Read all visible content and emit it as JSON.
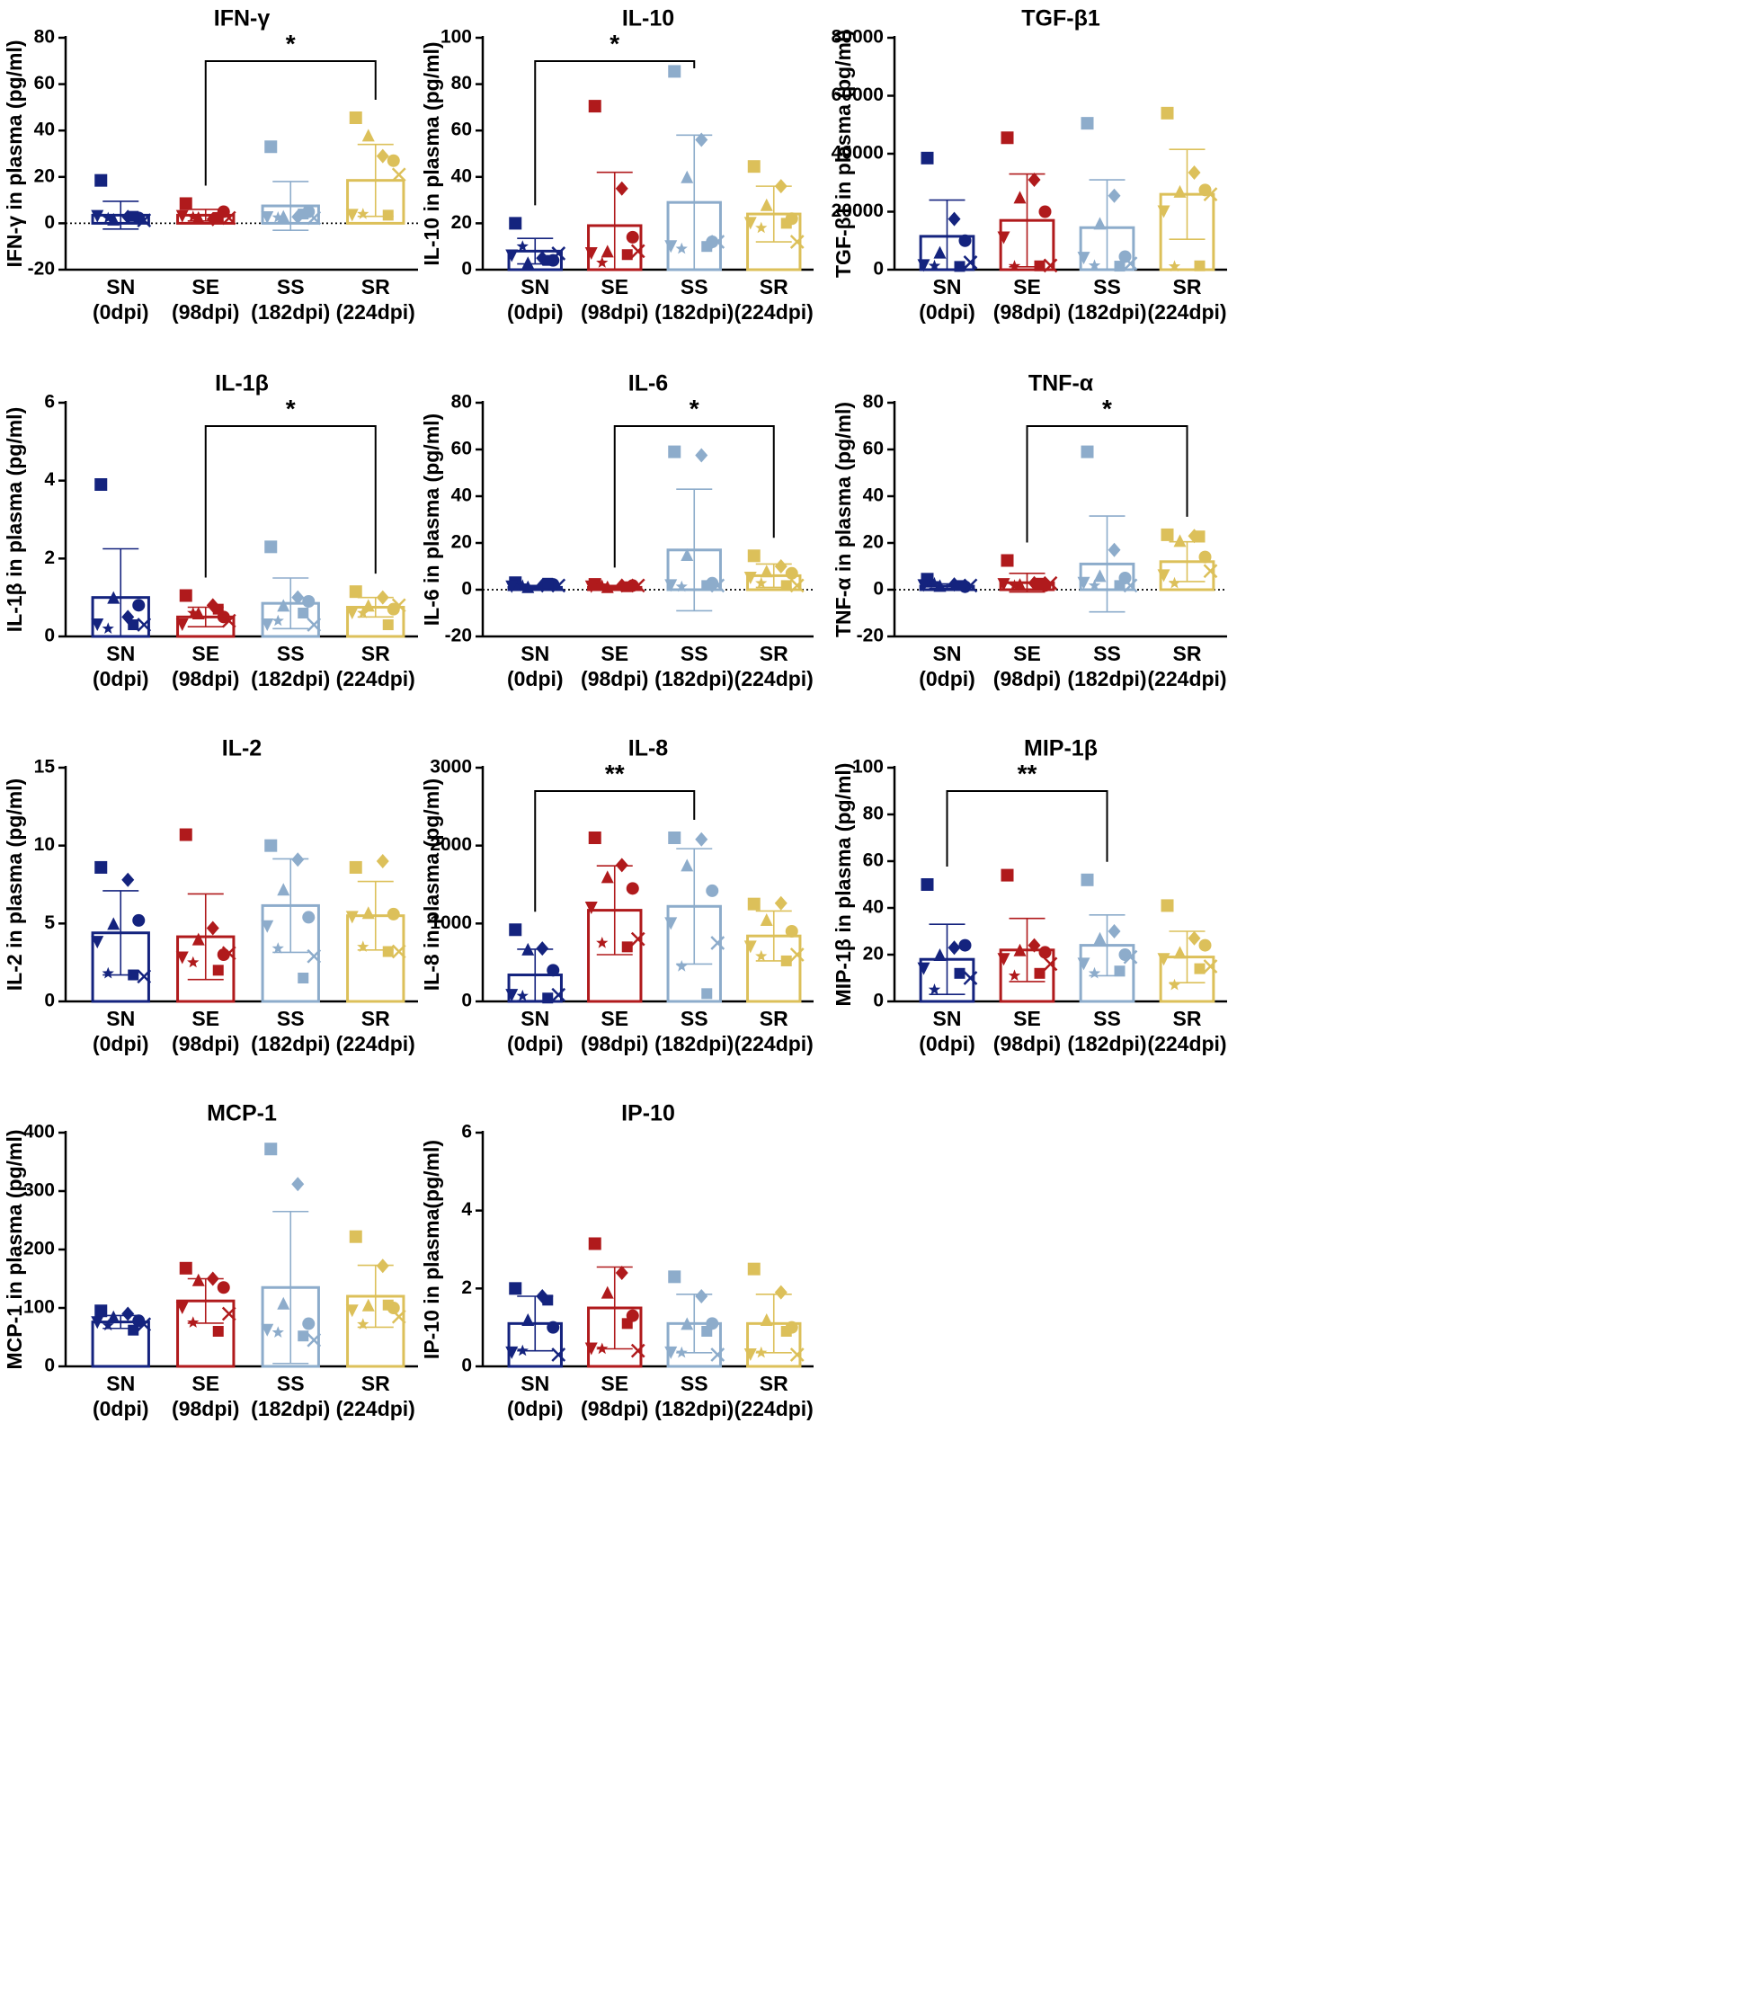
{
  "figure": {
    "categories": [
      "SN",
      "SE",
      "SS",
      "SR"
    ],
    "timepoints": [
      "(0dpi)",
      "(98dpi)",
      "(182dpi)",
      "(224dpi)"
    ]
  },
  "colors": {
    "SN": "#14237e",
    "SE": "#b01a1c",
    "SS": "#8daccb",
    "SR": "#dcc05a",
    "axis": "#000000"
  },
  "chart_data": [
    {
      "type": "bar",
      "title": "IFN-γ",
      "ylabel": "IFN-γ in plasma (pg/ml)",
      "ylim": [
        -20,
        80
      ],
      "yticks": [
        -20,
        0,
        20,
        40,
        60,
        80
      ],
      "categories": [
        "SN (0dpi)",
        "SE (98dpi)",
        "SS (182dpi)",
        "SR (224dpi)"
      ],
      "values": [
        3.5,
        3.5,
        7.5,
        18.5
      ],
      "sd": [
        6,
        2.5,
        10.5,
        15.5
      ],
      "points": [
        [
          18.5,
          2,
          1,
          1.5,
          3,
          0.5,
          1.5,
          3
        ],
        [
          8.5,
          1,
          2.5,
          5,
          3,
          1.5,
          2,
          2.5
        ],
        [
          33,
          2,
          3,
          5,
          2.5,
          1.5,
          2.5,
          4
        ],
        [
          45.5,
          29,
          38,
          27,
          3.5,
          21,
          4,
          3.5
        ]
      ],
      "significance": [
        {
          "from": 1,
          "to": 3,
          "label": "*"
        }
      ]
    },
    {
      "type": "bar",
      "title": "IL-10",
      "ylabel": "IL-10 in plasma (pg/ml)",
      "ylim": [
        0,
        100
      ],
      "yticks": [
        0,
        20,
        40,
        60,
        80,
        100
      ],
      "categories": [
        "SN (0dpi)",
        "SE (98dpi)",
        "SS (182dpi)",
        "SR (224dpi)"
      ],
      "values": [
        8,
        19,
        29,
        24
      ],
      "sd": [
        5.5,
        23,
        29,
        12
      ],
      "points": [
        [
          20,
          5,
          3,
          4,
          6,
          7,
          10,
          4
        ],
        [
          70.5,
          35,
          8,
          14,
          7,
          8,
          3,
          6.5
        ],
        [
          85.5,
          56,
          40,
          12,
          10,
          12,
          9,
          10
        ],
        [
          44.5,
          36,
          28,
          22,
          20,
          12,
          18,
          20
        ]
      ],
      "significance": [
        {
          "from": 0,
          "to": 2,
          "label": "*"
        }
      ]
    },
    {
      "type": "bar",
      "title": "TGF-β1",
      "ylabel": "TGF-β1 in plasma (pg/ml)",
      "ylim": [
        0,
        80000
      ],
      "yticks": [
        0,
        20000,
        40000,
        60000,
        80000
      ],
      "categories": [
        "SN (0dpi)",
        "SE (98dpi)",
        "SS (182dpi)",
        "SR (224dpi)"
      ],
      "values": [
        11500,
        17000,
        14500,
        26000
      ],
      "sd": [
        12500,
        16000,
        16500,
        15500
      ],
      "points": [
        [
          38500,
          17500,
          6000,
          10000,
          800,
          2500,
          700,
          500
        ],
        [
          45500,
          31000,
          25000,
          20000,
          11000,
          800,
          600,
          700
        ],
        [
          50500,
          25500,
          16000,
          4500,
          4000,
          1500,
          800,
          600
        ],
        [
          54000,
          33500,
          27000,
          27500,
          20000,
          26000,
          500,
          700
        ]
      ],
      "significance": []
    },
    {
      "type": "bar",
      "title": "IL-1β",
      "ylabel": "IL-1β in plasma (pg/ml)",
      "ylim": [
        0,
        6
      ],
      "yticks": [
        0,
        2,
        4,
        6
      ],
      "categories": [
        "SN (0dpi)",
        "SE (98dpi)",
        "SS (182dpi)",
        "SR (224dpi)"
      ],
      "values": [
        1.0,
        0.5,
        0.85,
        0.75
      ],
      "sd": [
        1.25,
        0.25,
        0.65,
        0.25
      ],
      "points": [
        [
          3.9,
          0.5,
          1.0,
          0.8,
          0.3,
          0.3,
          0.2,
          0.3
        ],
        [
          1.05,
          0.8,
          0.6,
          0.5,
          0.3,
          0.4,
          0.6,
          0.7
        ],
        [
          2.3,
          1.0,
          0.8,
          0.9,
          0.3,
          0.3,
          0.4,
          0.6
        ],
        [
          1.15,
          1.0,
          0.8,
          0.7,
          0.6,
          0.8,
          0.6,
          0.3
        ]
      ],
      "significance": [
        {
          "from": 1,
          "to": 3,
          "label": "*"
        }
      ]
    },
    {
      "type": "bar",
      "title": "IL-6",
      "ylabel": "IL-6 in plasma (pg/ml)",
      "ylim": [
        -20,
        80
      ],
      "yticks": [
        -20,
        0,
        20,
        40,
        60,
        80
      ],
      "categories": [
        "SN (0dpi)",
        "SE (98dpi)",
        "SS (182dpi)",
        "SR (224dpi)"
      ],
      "values": [
        1,
        1,
        17,
        6
      ],
      "sd": [
        0.8,
        0.8,
        26,
        5
      ],
      "points": [
        [
          3,
          1,
          0.5,
          1.5,
          0.5,
          1,
          1,
          2
        ],
        [
          1.5,
          1,
          0.5,
          1,
          0.5,
          1,
          1,
          0.5
        ],
        [
          59,
          57.5,
          15,
          2,
          1,
          1,
          0.5,
          1
        ],
        [
          14.5,
          10,
          8,
          7,
          5,
          1,
          2,
          1
        ]
      ],
      "significance": [
        {
          "from": 1,
          "to": 3,
          "label": "*"
        }
      ]
    },
    {
      "type": "bar",
      "title": "TNF-α",
      "ylabel": "TNF-α in plasma (pg/ml)",
      "ylim": [
        -20,
        80
      ],
      "yticks": [
        -20,
        0,
        20,
        40,
        60,
        80
      ],
      "categories": [
        "SN (0dpi)",
        "SE (98dpi)",
        "SS (182dpi)",
        "SR (224dpi)"
      ],
      "values": [
        1.5,
        3,
        11,
        12
      ],
      "sd": [
        1,
        4,
        20.5,
        8.5
      ],
      "points": [
        [
          4.5,
          1.5,
          1,
          0.5,
          1,
          1,
          2,
          1
        ],
        [
          12.5,
          2,
          1.5,
          1,
          1.5,
          2,
          1,
          2
        ],
        [
          59,
          17,
          6,
          5,
          2,
          1,
          1,
          1
        ],
        [
          23.5,
          23,
          21,
          14,
          6,
          8,
          2,
          23
        ]
      ],
      "significance": [
        {
          "from": 1,
          "to": 3,
          "label": "*"
        }
      ]
    },
    {
      "type": "bar",
      "title": "IL-2",
      "ylabel": "IL-2 in plasma (pg/ml)",
      "ylim": [
        0,
        15
      ],
      "yticks": [
        0,
        5,
        10,
        15
      ],
      "categories": [
        "SN (0dpi)",
        "SE (98dpi)",
        "SS (182dpi)",
        "SR (224dpi)"
      ],
      "values": [
        4.4,
        4.15,
        6.15,
        5.5
      ],
      "sd": [
        2.7,
        2.75,
        3.0,
        2.2
      ],
      "points": [
        [
          8.6,
          7.8,
          5.0,
          5.2,
          3.8,
          1.6,
          1.8,
          1.7
        ],
        [
          10.7,
          4.7,
          4.0,
          3.0,
          2.8,
          3.1,
          2.5,
          2.0
        ],
        [
          10.0,
          9.1,
          7.2,
          5.4,
          4.8,
          2.9,
          3.4,
          1.5
        ],
        [
          8.6,
          9.0,
          5.7,
          5.6,
          5.4,
          3.2,
          3.5,
          3.2
        ]
      ],
      "significance": []
    },
    {
      "type": "bar",
      "title": "IL-8",
      "ylabel": "IL-8 in plasma (pg/ml)",
      "ylim": [
        0,
        3000
      ],
      "yticks": [
        0,
        1000,
        2000,
        3000
      ],
      "categories": [
        "SN (0dpi)",
        "SE (98dpi)",
        "SS (182dpi)",
        "SR (224dpi)"
      ],
      "values": [
        340,
        1170,
        1220,
        840
      ],
      "sd": [
        330,
        570,
        740,
        320
      ],
      "points": [
        [
          920,
          680,
          670,
          400,
          80,
          60,
          70,
          20
        ],
        [
          2100,
          1750,
          1600,
          1450,
          1200,
          800,
          750,
          700
        ],
        [
          2100,
          2080,
          1750,
          1420,
          1000,
          750,
          450,
          100
        ],
        [
          1250,
          1260,
          1050,
          900,
          700,
          600,
          580,
          520
        ]
      ],
      "significance": [
        {
          "from": 0,
          "to": 2,
          "label": "**"
        }
      ]
    },
    {
      "type": "bar",
      "title": "MIP-1β",
      "ylabel": "MIP-1β in plasma (pg/ml)",
      "ylim": [
        0,
        100
      ],
      "yticks": [
        0,
        20,
        40,
        60,
        80,
        100
      ],
      "categories": [
        "SN (0dpi)",
        "SE (98dpi)",
        "SS (182dpi)",
        "SR (224dpi)"
      ],
      "values": [
        18,
        22,
        24,
        19
      ],
      "sd": [
        15,
        13.5,
        13,
        11
      ],
      "points": [
        [
          50,
          23,
          20,
          24,
          14,
          10,
          5,
          12
        ],
        [
          54,
          24,
          22,
          21,
          18,
          16,
          11,
          12
        ],
        [
          52,
          30,
          27,
          20,
          16,
          19,
          12,
          13
        ],
        [
          41,
          27,
          21,
          24,
          18,
          15,
          7,
          14
        ]
      ],
      "significance": [
        {
          "from": 0,
          "to": 2,
          "label": "**"
        }
      ]
    },
    {
      "type": "bar",
      "title": "MCP-1",
      "ylabel": "MCP-1 in plasma (pg/ml)",
      "ylim": [
        0,
        400
      ],
      "yticks": [
        0,
        100,
        200,
        300,
        400
      ],
      "categories": [
        "SN (0dpi)",
        "SE (98dpi)",
        "SS (182dpi)",
        "SR (224dpi)"
      ],
      "values": [
        76,
        112,
        135,
        120
      ],
      "sd": [
        11,
        38,
        130,
        53
      ],
      "points": [
        [
          95,
          90,
          85,
          78,
          75,
          72,
          70,
          62
        ],
        [
          168,
          150,
          148,
          135,
          100,
          90,
          75,
          60
        ],
        [
          372,
          312,
          108,
          73,
          62,
          45,
          58,
          52
        ],
        [
          222,
          172,
          105,
          100,
          95,
          85,
          72,
          105
        ]
      ],
      "significance": []
    },
    {
      "type": "bar",
      "title": "IP-10",
      "ylabel": "IP-10 in plasma(pg/ml)",
      "ylim": [
        0,
        6
      ],
      "yticks": [
        0,
        2,
        4,
        6
      ],
      "categories": [
        "SN (0dpi)",
        "SE (98dpi)",
        "SS (182dpi)",
        "SR (224dpi)"
      ],
      "values": [
        1.1,
        1.5,
        1.1,
        1.1
      ],
      "sd": [
        0.7,
        1.05,
        0.75,
        0.75
      ],
      "points": [
        [
          2.0,
          1.8,
          1.2,
          1.0,
          0.35,
          0.3,
          0.4,
          1.7
        ],
        [
          3.15,
          2.4,
          1.9,
          1.3,
          0.45,
          0.4,
          0.45,
          1.1
        ],
        [
          2.3,
          1.8,
          1.1,
          1.1,
          0.35,
          0.3,
          0.35,
          0.9
        ],
        [
          2.5,
          1.9,
          1.2,
          1.0,
          0.3,
          0.3,
          0.35,
          0.9
        ]
      ],
      "significance": []
    }
  ]
}
